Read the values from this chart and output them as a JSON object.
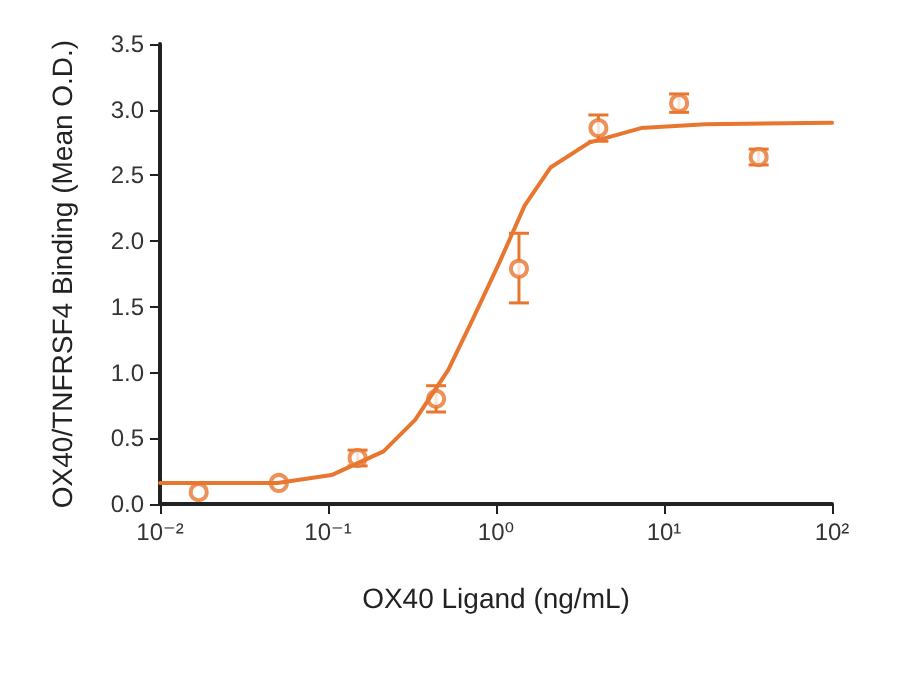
{
  "chart_data": {
    "type": "scatter",
    "xlabel": "OX40 Ligand (ng/mL)",
    "ylabel": "OX40/TNFRSF4 Binding (Mean O.D.)",
    "log": "x",
    "grid": false,
    "xlim": [
      0.01,
      100
    ],
    "xticks": [
      {
        "value": 0.01,
        "label": "10⁻²"
      },
      {
        "value": 0.1,
        "label": "10⁻¹"
      },
      {
        "value": 1,
        "label": "10⁰"
      },
      {
        "value": 10,
        "label": "10¹"
      },
      {
        "value": 100,
        "label": "10²"
      }
    ],
    "ylim": [
      0,
      3.5
    ],
    "yticks": [
      {
        "value": 0,
        "label": "0.0"
      },
      {
        "value": 0.5,
        "label": "0.5"
      },
      {
        "value": 1,
        "label": "1.0"
      },
      {
        "value": 1.5,
        "label": "1.5"
      },
      {
        "value": 2,
        "label": "2.0"
      },
      {
        "value": 2.5,
        "label": "2.5"
      },
      {
        "value": 3,
        "label": "3.0"
      },
      {
        "value": 3.5,
        "label": "3.5"
      }
    ],
    "series": [
      {
        "marker": "circle",
        "color": "#e8762f",
        "x": [
          0.017,
          0.051,
          0.15,
          0.44,
          1.37,
          4.07,
          12.3,
          36.6
        ],
        "values": [
          0.09,
          0.16,
          0.35,
          0.8,
          1.79,
          2.86,
          3.05,
          2.64
        ],
        "errors": [
          null,
          null,
          0.06,
          0.1,
          [
            1.53,
            2.06
          ],
          0.1,
          0.07,
          0.06
        ]
      },
      {
        "type": "line",
        "marker": "none",
        "line_style": "solid",
        "color": "#e8762f",
        "x": [
          0.01,
          0.05,
          0.105,
          0.214,
          0.33,
          0.52,
          0.73,
          1.05,
          1.48,
          2.11,
          3.59,
          7.3,
          17.6,
          100
        ],
        "values": [
          0.16,
          0.16,
          0.22,
          0.4,
          0.64,
          1.02,
          1.41,
          1.84,
          2.27,
          2.56,
          2.75,
          2.86,
          2.89,
          2.9
        ]
      }
    ]
  }
}
